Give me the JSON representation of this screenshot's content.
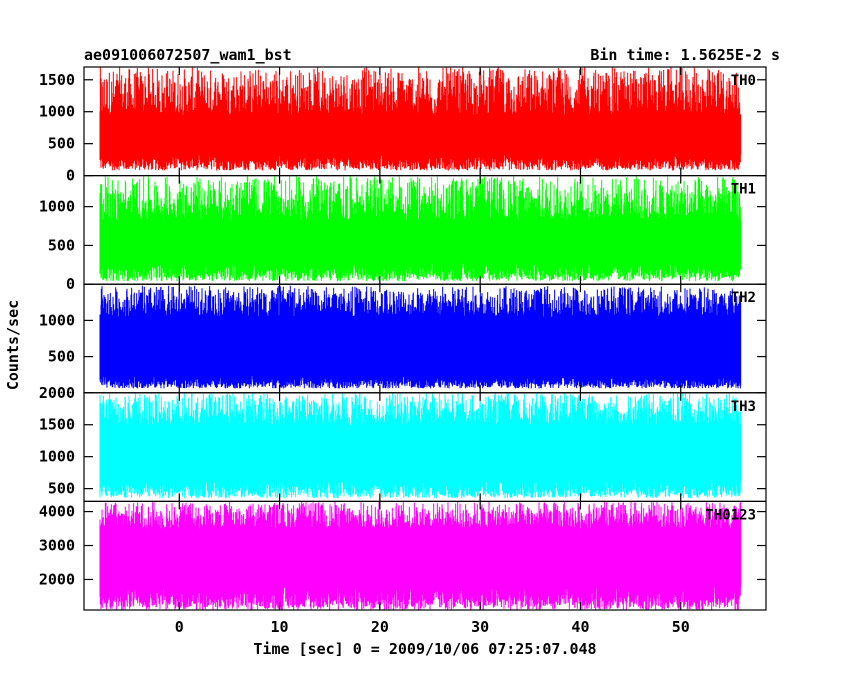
{
  "chart_data": {
    "type": "line",
    "title_left": "ae091006072507_wam1_bst",
    "title_right": "Bin time: 1.5625E-2 s",
    "xlabel": "Time [sec] 0 = 2009/10/06 07:25:07.048",
    "ylabel": "Counts/sec",
    "xlim": [
      -9.5,
      58.5
    ],
    "data_xrange": [
      -8,
      56
    ],
    "x_ticks": [
      0,
      10,
      20,
      30,
      40,
      50
    ],
    "grid": false,
    "panels": [
      {
        "name": "TH0",
        "color": "#ff0000",
        "ylim": [
          0,
          1700
        ],
        "y_ticks": [
          0,
          500,
          1000,
          1500
        ],
        "mean": 650,
        "low_range": [
          80,
          330
        ],
        "high_range": [
          950,
          1700
        ]
      },
      {
        "name": "TH1",
        "color": "#00ff00",
        "ylim": [
          0,
          1400
        ],
        "y_ticks": [
          0,
          500,
          1000
        ],
        "mean": 530,
        "low_range": [
          40,
          280
        ],
        "high_range": [
          820,
          1400
        ]
      },
      {
        "name": "TH2",
        "color": "#0000ff",
        "ylim": [
          0,
          1500
        ],
        "y_ticks": [
          500,
          1000
        ],
        "mean": 680,
        "low_range": [
          60,
          240
        ],
        "high_range": [
          1050,
          1480
        ]
      },
      {
        "name": "TH3",
        "color": "#00ffff",
        "ylim": [
          300,
          2000
        ],
        "y_ticks": [
          500,
          1000,
          1500,
          2000
        ],
        "mean": 1050,
        "low_range": [
          350,
          650
        ],
        "high_range": [
          1500,
          2000
        ]
      },
      {
        "name": "TH0123",
        "color": "#ff00ff",
        "ylim": [
          1100,
          4300
        ],
        "y_ticks": [
          2000,
          3000,
          4000
        ],
        "mean": 2650,
        "low_range": [
          1100,
          1800
        ],
        "high_range": [
          3500,
          4300
        ]
      }
    ]
  }
}
